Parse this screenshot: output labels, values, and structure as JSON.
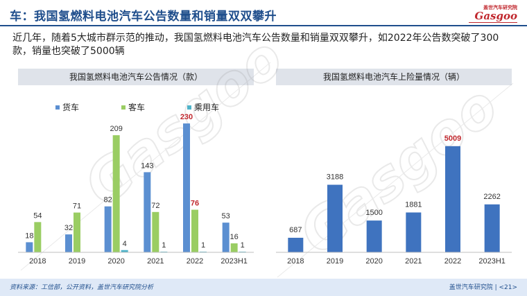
{
  "header": {
    "title": "车：我国氢燃料电池汽车公告数量和销量双双攀升",
    "logo_top": "盖世汽车研究院",
    "logo_main": "Gasgoo"
  },
  "intro_text": "近几年，随着5大城市群示范的推动，我国氢燃料电池汽车公告数量和销量双双攀升，如2022年公告数突破了300款，销量也突破了5000辆",
  "footer": {
    "source": "资料来源：工信部，公开资料，盖世汽车研究院分析",
    "brand": "盖世汽车研究院 | <21>"
  },
  "colors": {
    "truck": "#5b8fd1",
    "bus": "#9acd63",
    "car": "#4fb3c9",
    "sales": "#3f73bf",
    "highlight_label": "#c0272d",
    "title_blue": "#1f4e8c"
  },
  "chart_data": [
    {
      "type": "bar",
      "title": "我国氢燃料电池汽车公告情况（款）",
      "categories": [
        "2018",
        "2019",
        "2020",
        "2021",
        "2022",
        "2023H1"
      ],
      "series": [
        {
          "name": "货车",
          "values": [
            18,
            32,
            82,
            143,
            230,
            53
          ]
        },
        {
          "name": "客车",
          "values": [
            54,
            71,
            209,
            72,
            76,
            16
          ]
        },
        {
          "name": "乘用车",
          "values": [
            null,
            null,
            4,
            1,
            1,
            1
          ]
        }
      ],
      "highlight": {
        "category": "2022",
        "series": [
          "货车",
          "客车"
        ]
      },
      "ylim": [
        0,
        240
      ],
      "legend": "top-left"
    },
    {
      "type": "bar",
      "title": "我国氢燃料电池汽车上险量情况（辆）",
      "categories": [
        "2018",
        "2019",
        "2020",
        "2021",
        "2022",
        "2023H1"
      ],
      "values": [
        687,
        3188,
        1500,
        1881,
        5009,
        2262
      ],
      "highlight": {
        "category": "2022"
      },
      "ylim": [
        0,
        5200
      ]
    }
  ]
}
